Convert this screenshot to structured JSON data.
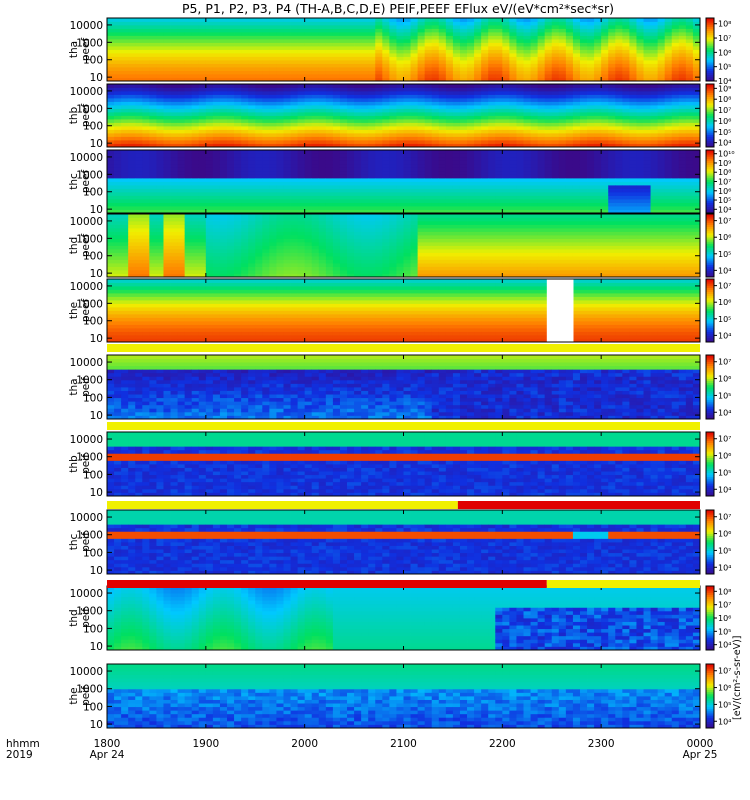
{
  "chart_data": {
    "type": "heatmap",
    "title": "P5, P1, P2, P3, P4 (TH-A,B,C,D,E) PEIF,PEEF EFlux eV/(eV*cm²*sec*sr)",
    "x": {
      "ticks": [
        "1800",
        "1900",
        "2000",
        "2100",
        "2200",
        "2300",
        "0000"
      ],
      "tick_hours": [
        18,
        19,
        20,
        21,
        22,
        23,
        24
      ],
      "range_hours": [
        18,
        24
      ],
      "sublabels": [
        {
          "tick": "1800",
          "text": "Apr 24"
        },
        {
          "tick": "0000",
          "text": "Apr 25"
        }
      ],
      "left_labels": [
        "hhmm",
        "2019"
      ]
    },
    "y": {
      "scale": "log",
      "range": [
        6,
        25000
      ],
      "ticks": [
        "10",
        "100",
        "1000",
        "10000"
      ],
      "tick_values": [
        10,
        100,
        1000,
        10000
      ]
    },
    "colorbar": {
      "label": "[eV/(cm²-s-sr-eV)]",
      "colors": [
        "#3a0a8a",
        "#1030e0",
        "#00c8ff",
        "#00e060",
        "#f0f000",
        "#ff8000",
        "#e00000"
      ]
    },
    "panels": [
      {
        "species": "tha",
        "product": "peef",
        "cb_ticks": [
          "10⁴",
          "10⁵",
          "10⁶",
          "10⁷",
          "10⁸"
        ],
        "cb_exp": [
          4,
          5,
          6,
          7,
          8
        ],
        "cb_range": [
          4,
          8.4
        ],
        "pattern": "peef_a",
        "flag": "none"
      },
      {
        "species": "thb",
        "product": "peef",
        "cb_ticks": [
          "10⁴",
          "10⁵",
          "10⁶",
          "10⁷",
          "10⁸",
          "10⁹"
        ],
        "cb_exp": [
          4,
          5,
          6,
          7,
          8,
          9
        ],
        "cb_range": [
          3.6,
          9.4
        ],
        "pattern": "peef_b",
        "flag": "none"
      },
      {
        "species": "thc",
        "product": "peef",
        "cb_ticks": [
          "10⁴",
          "10⁵",
          "10⁶",
          "10⁷",
          "10⁸",
          "10⁹",
          "10¹⁰"
        ],
        "cb_exp": [
          4,
          5,
          6,
          7,
          8,
          9,
          10
        ],
        "cb_range": [
          3.6,
          10.4
        ],
        "pattern": "peef_c",
        "flag": "none"
      },
      {
        "species": "thd",
        "product": "peef",
        "cb_ticks": [
          "10⁴",
          "10⁵",
          "10⁶",
          "10⁷"
        ],
        "cb_exp": [
          4,
          5,
          6,
          7
        ],
        "cb_range": [
          3.6,
          7.4
        ],
        "pattern": "peef_d",
        "flag": "none"
      },
      {
        "species": "the",
        "product": "peef",
        "cb_ticks": [
          "10⁴",
          "10⁵",
          "10⁶",
          "10⁷"
        ],
        "cb_exp": [
          4,
          5,
          6,
          7
        ],
        "cb_range": [
          3.6,
          7.4
        ],
        "pattern": "peef_e",
        "flag": "mixed"
      },
      {
        "species": "tha",
        "product": "peif",
        "cb_ticks": [
          "10⁴",
          "10⁵",
          "10⁶",
          "10⁷"
        ],
        "cb_exp": [
          4,
          5,
          6,
          7
        ],
        "cb_range": [
          3.6,
          7.4
        ],
        "pattern": "peif_a",
        "flag": "yellow"
      },
      {
        "species": "thb",
        "product": "peif",
        "cb_ticks": [
          "10⁴",
          "10⁵",
          "10⁶",
          "10⁷"
        ],
        "cb_exp": [
          4,
          5,
          6,
          7
        ],
        "cb_range": [
          3.6,
          7.4
        ],
        "pattern": "peif_b",
        "flag": "yellow"
      },
      {
        "species": "thc",
        "product": "peif",
        "cb_ticks": [
          "10⁴",
          "10⁵",
          "10⁶",
          "10⁷"
        ],
        "cb_exp": [
          4,
          5,
          6,
          7
        ],
        "cb_range": [
          3.6,
          7.4
        ],
        "pattern": "peif_c",
        "flag": "yellow_red",
        "flag_red_from_hour": 21.55
      },
      {
        "species": "thd",
        "product": "peif",
        "cb_ticks": [
          "10⁴",
          "10⁵",
          "10⁶",
          "10⁷",
          "10⁸"
        ],
        "cb_exp": [
          4,
          5,
          6,
          7,
          8
        ],
        "cb_range": [
          3.6,
          8.4
        ],
        "pattern": "peif_d",
        "flag": "red_yellow",
        "flag_red_to_hour": 22.45
      },
      {
        "species": "the",
        "product": "peif",
        "cb_ticks": [
          "10⁴",
          "10⁵",
          "10⁶",
          "10⁷"
        ],
        "cb_exp": [
          4,
          5,
          6,
          7
        ],
        "cb_range": [
          3.6,
          7.4
        ],
        "pattern": "peif_e",
        "flag": "none"
      }
    ]
  }
}
